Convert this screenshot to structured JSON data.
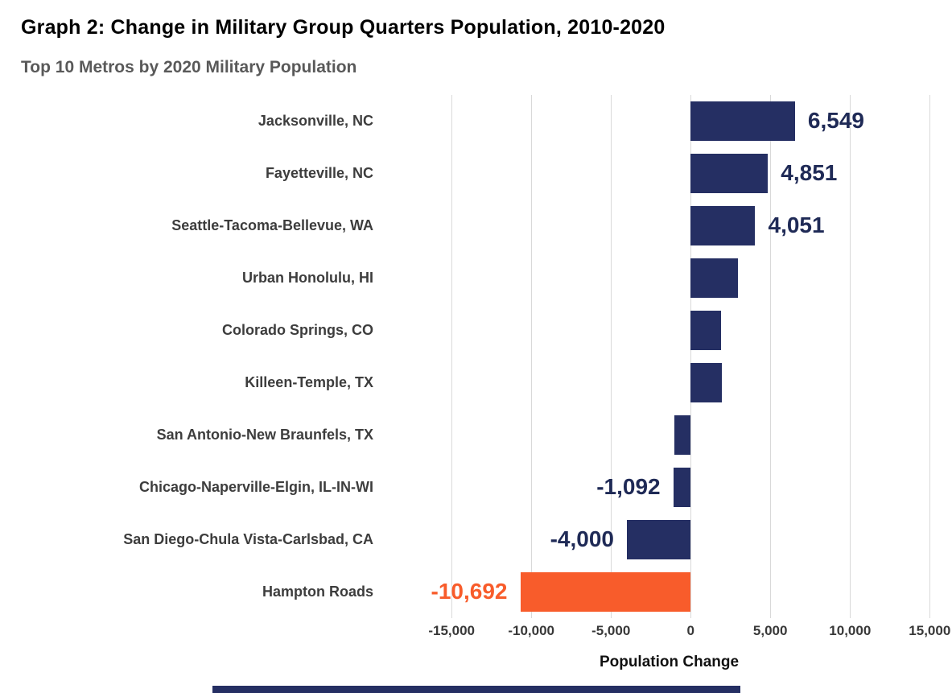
{
  "header": {
    "title": "Graph 2: Change in Military Group Quarters Population, 2010-2020",
    "subtitle": "Top 10 Metros by 2020 Military Population"
  },
  "chart_data": {
    "type": "bar",
    "orientation": "horizontal",
    "title": "Graph 2: Change in Military Group Quarters Population, 2010-2020",
    "subtitle": "Top 10 Metros by 2020 Military Population",
    "xlabel": "Population Change",
    "categories": [
      "Jacksonville, NC",
      "Fayetteville, NC",
      "Seattle-Tacoma-Bellevue, WA",
      "Urban Honolulu, HI",
      "Colorado Springs, CO",
      "Killeen-Temple, TX",
      "San Antonio-New Braunfels, TX",
      "Chicago-Naperville-Elgin, IL-IN-WI",
      "San Diego-Chula Vista-Carlsbad, CA",
      "Hampton Roads"
    ],
    "values": [
      6549,
      4851,
      4051,
      2950,
      1900,
      1950,
      -1000,
      -1092,
      -4000,
      -10692
    ],
    "data_labels": [
      "6,549",
      "4,851",
      "4,051",
      "",
      "",
      "",
      "",
      "-1,092",
      "-4,000",
      "-10,692"
    ],
    "axis": {
      "min": -19100,
      "max": 16400,
      "ticks": [
        -15000,
        -10000,
        -5000,
        0,
        5000,
        10000,
        15000
      ],
      "tick_labels": [
        "-15,000",
        "-10,000",
        "-5,000",
        "0",
        "5,000",
        "10,000",
        "15,000"
      ]
    },
    "grid": true,
    "legend": false,
    "colors": {
      "bar_default": "#252f63",
      "bar_highlight": "#f85c2b",
      "highlight_index": 9,
      "label_color": "#1f2a56",
      "highlight_label_color": "#f85c2b",
      "gridline": "#d9d9d9"
    }
  },
  "footer": {
    "accent_bar_color": "#252f63"
  }
}
